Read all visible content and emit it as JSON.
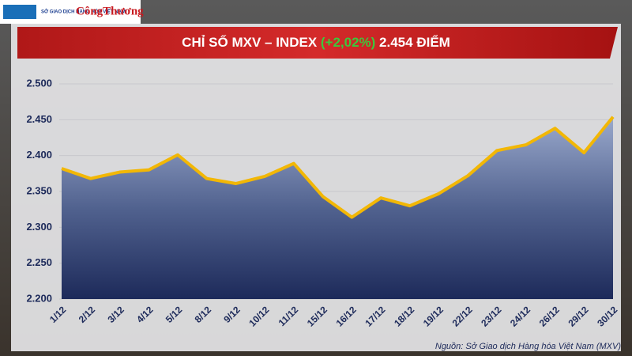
{
  "logo_text": "SỞ GIAO DỊCH HÀNG HÓA VIỆT NAM",
  "publisher": "CôngThương",
  "chart_data": {
    "type": "area",
    "title_prefix": "CHỈ SỐ MXV – INDEX ",
    "title_change": "(+2,02%)",
    "title_suffix": " 2.454 ĐIỂM",
    "categories": [
      "1/12",
      "2/12",
      "3/12",
      "4/12",
      "5/12",
      "8/12",
      "9/12",
      "10/12",
      "11/12",
      "15/12",
      "16/12",
      "17/12",
      "18/12",
      "19/12",
      "22/12",
      "23/12",
      "24/12",
      "26/12",
      "29/12",
      "30/12"
    ],
    "values": [
      2382,
      2368,
      2377,
      2380,
      2401,
      2368,
      2361,
      2371,
      2389,
      2343,
      2314,
      2341,
      2330,
      2347,
      2372,
      2407,
      2415,
      2438,
      2404,
      2454
    ],
    "color": "#f2b705",
    "ylim": [
      2200,
      2500
    ],
    "yticks": [
      {
        "value": 2200,
        "label": "2.200"
      },
      {
        "value": 2250,
        "label": "2.250"
      },
      {
        "value": 2300,
        "label": "2.300"
      },
      {
        "value": 2350,
        "label": "2.350"
      },
      {
        "value": 2400,
        "label": "2.400"
      },
      {
        "value": 2450,
        "label": "2.450"
      },
      {
        "value": 2500,
        "label": "2.500"
      }
    ],
    "grid": true,
    "source": "Nguồn: Sở Giao dịch Hàng hóa Việt Nam (MXV)"
  }
}
